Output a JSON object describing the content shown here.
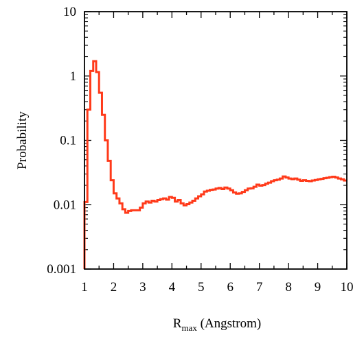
{
  "chart_data": {
    "type": "line",
    "style": "step-histogram",
    "title": "",
    "xlabel_main": "R",
    "xlabel_sub": "max",
    "xlabel_rest": " (Angstrom)",
    "ylabel": "Probability",
    "xlim": [
      1,
      10
    ],
    "ylim": [
      0.001,
      10
    ],
    "yscale": "log",
    "xticks": [
      "1",
      "2",
      "3",
      "4",
      "5",
      "6",
      "7",
      "8",
      "9",
      "10"
    ],
    "yticks": [
      "0.001",
      "0.01",
      "0.1",
      "1",
      "10"
    ],
    "grid": false,
    "line_color": "#ff3a1a",
    "bin_width": 0.1,
    "series": [
      {
        "x": [
          1.0,
          1.1,
          1.2,
          1.3,
          1.4,
          1.5,
          1.6,
          1.7,
          1.8,
          1.9,
          2.0,
          2.1,
          2.2,
          2.3,
          2.4,
          2.5,
          2.6,
          2.7,
          2.8,
          2.9,
          3.0,
          3.1,
          3.2,
          3.3,
          3.4,
          3.5,
          3.6,
          3.7,
          3.8,
          3.9,
          4.0,
          4.1,
          4.2,
          4.3,
          4.4,
          4.5,
          4.6,
          4.7,
          4.8,
          4.9,
          5.0,
          5.1,
          5.2,
          5.3,
          5.4,
          5.5,
          5.6,
          5.7,
          5.8,
          5.9,
          6.0,
          6.1,
          6.2,
          6.3,
          6.4,
          6.5,
          6.6,
          6.7,
          6.8,
          6.9,
          7.0,
          7.1,
          7.2,
          7.3,
          7.4,
          7.5,
          7.6,
          7.7,
          7.8,
          7.9,
          8.0,
          8.1,
          8.2,
          8.3,
          8.4,
          8.5,
          8.6,
          8.7,
          8.8,
          8.9,
          9.0,
          9.1,
          9.2,
          9.3,
          9.4,
          9.5,
          9.6,
          9.7,
          9.8,
          9.9
        ],
        "y": [
          0.011,
          0.3,
          1.2,
          1.7,
          1.15,
          0.55,
          0.25,
          0.1,
          0.048,
          0.024,
          0.015,
          0.0125,
          0.0105,
          0.0085,
          0.0075,
          0.008,
          0.0082,
          0.0082,
          0.0082,
          0.009,
          0.0105,
          0.0112,
          0.0108,
          0.0115,
          0.0112,
          0.0118,
          0.0122,
          0.0125,
          0.012,
          0.0132,
          0.0128,
          0.0112,
          0.0118,
          0.0105,
          0.0098,
          0.0102,
          0.0108,
          0.0115,
          0.0125,
          0.0135,
          0.0145,
          0.016,
          0.0165,
          0.017,
          0.0172,
          0.0178,
          0.0182,
          0.0175,
          0.0185,
          0.0178,
          0.0168,
          0.0155,
          0.0148,
          0.015,
          0.0158,
          0.0168,
          0.0178,
          0.018,
          0.019,
          0.0205,
          0.0198,
          0.0202,
          0.0212,
          0.022,
          0.0232,
          0.024,
          0.0245,
          0.0255,
          0.0275,
          0.0265,
          0.0255,
          0.025,
          0.0255,
          0.0245,
          0.0235,
          0.024,
          0.0235,
          0.0232,
          0.0238,
          0.0242,
          0.0248,
          0.0252,
          0.0258,
          0.0262,
          0.0268,
          0.0272,
          0.0265,
          0.0255,
          0.0248,
          0.0238
        ]
      }
    ]
  }
}
